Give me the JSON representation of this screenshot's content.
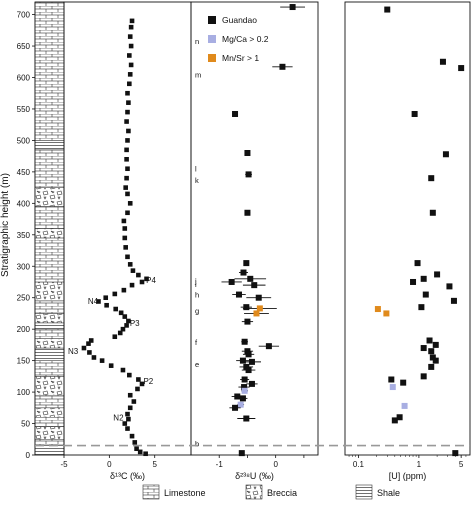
{
  "chart_data": {
    "type": "scatter",
    "ylabel": "Stratigraphic height (m)",
    "ylim": [
      0,
      720
    ],
    "yticks": [
      0,
      50,
      100,
      150,
      200,
      250,
      300,
      350,
      400,
      450,
      500,
      550,
      600,
      650,
      700
    ],
    "boundary_height": 15,
    "lithology_legend": [
      "Limestone",
      "Breccia",
      "Shale"
    ],
    "lithology_column": [
      {
        "from": 0,
        "to": 15,
        "rock": "shale"
      },
      {
        "from": 15,
        "to": 25,
        "rock": "limestone"
      },
      {
        "from": 25,
        "to": 45,
        "rock": "breccia"
      },
      {
        "from": 45,
        "to": 60,
        "rock": "limestone"
      },
      {
        "from": 60,
        "to": 75,
        "rock": "breccia"
      },
      {
        "from": 75,
        "to": 95,
        "rock": "limestone"
      },
      {
        "from": 95,
        "to": 125,
        "rock": "breccia"
      },
      {
        "from": 125,
        "to": 150,
        "rock": "limestone"
      },
      {
        "from": 150,
        "to": 170,
        "rock": "shale"
      },
      {
        "from": 170,
        "to": 185,
        "rock": "breccia"
      },
      {
        "from": 185,
        "to": 200,
        "rock": "limestone"
      },
      {
        "from": 200,
        "to": 210,
        "rock": "shale"
      },
      {
        "from": 210,
        "to": 225,
        "rock": "breccia"
      },
      {
        "from": 225,
        "to": 245,
        "rock": "limestone"
      },
      {
        "from": 245,
        "to": 275,
        "rock": "breccia"
      },
      {
        "from": 275,
        "to": 345,
        "rock": "limestone"
      },
      {
        "from": 345,
        "to": 360,
        "rock": "breccia"
      },
      {
        "from": 360,
        "to": 395,
        "rock": "limestone"
      },
      {
        "from": 395,
        "to": 425,
        "rock": "breccia"
      },
      {
        "from": 425,
        "to": 485,
        "rock": "limestone"
      },
      {
        "from": 485,
        "to": 500,
        "rock": "shale"
      },
      {
        "from": 500,
        "to": 720,
        "rock": "limestone"
      }
    ],
    "panels": [
      {
        "xlabel": "δ¹³C (‰)",
        "xlim": [
          -5,
          9
        ],
        "xticks": [
          -5,
          0,
          5
        ],
        "curve": [
          [
            4.0,
            2
          ],
          [
            3.4,
            5
          ],
          [
            3.0,
            10
          ],
          [
            2.8,
            20
          ],
          [
            2.5,
            30
          ],
          [
            2.0,
            42
          ],
          [
            1.7,
            50
          ],
          [
            2.1,
            57
          ],
          [
            2.0,
            65
          ],
          [
            2.3,
            75
          ],
          [
            2.7,
            85
          ],
          [
            2.3,
            95
          ],
          [
            3.1,
            105
          ],
          [
            3.6,
            113
          ],
          [
            3.2,
            120
          ],
          [
            2.2,
            127
          ],
          [
            1.5,
            135
          ],
          [
            0.2,
            142
          ],
          [
            -0.8,
            150
          ],
          [
            -1.7,
            155
          ],
          [
            -2.2,
            163
          ],
          [
            -2.8,
            170
          ],
          [
            -2.3,
            177
          ],
          [
            -2.0,
            182
          ],
          [
            0.6,
            188
          ],
          [
            1.2,
            194
          ],
          [
            1.5,
            200
          ],
          [
            1.9,
            206
          ],
          [
            2.1,
            213
          ],
          [
            1.7,
            220
          ],
          [
            1.3,
            226
          ],
          [
            0.7,
            232
          ],
          [
            -0.3,
            238
          ],
          [
            -1.2,
            244
          ],
          [
            -0.4,
            250
          ],
          [
            0.6,
            256
          ],
          [
            1.6,
            262
          ],
          [
            2.5,
            270
          ],
          [
            3.6,
            275
          ],
          [
            4.1,
            280
          ],
          [
            3.2,
            286
          ],
          [
            2.6,
            293
          ],
          [
            2.3,
            303
          ],
          [
            2.0,
            315
          ],
          [
            1.8,
            330
          ],
          [
            1.7,
            345
          ],
          [
            1.7,
            360
          ],
          [
            1.6,
            372
          ],
          [
            2.0,
            385
          ],
          [
            2.3,
            400
          ],
          [
            2.0,
            415
          ],
          [
            1.8,
            425
          ],
          [
            1.9,
            440
          ],
          [
            2.0,
            455
          ],
          [
            1.9,
            470
          ],
          [
            1.9,
            485
          ],
          [
            2.0,
            500
          ],
          [
            2.1,
            515
          ],
          [
            1.9,
            530
          ],
          [
            2.0,
            545
          ],
          [
            2.1,
            560
          ],
          [
            2.0,
            575
          ],
          [
            2.2,
            590
          ],
          [
            2.3,
            605
          ],
          [
            2.4,
            620
          ],
          [
            2.2,
            635
          ],
          [
            2.4,
            650
          ],
          [
            2.3,
            665
          ],
          [
            2.4,
            680
          ],
          [
            2.5,
            690
          ]
        ],
        "annotations": [
          {
            "text": "P4",
            "x": 4.6,
            "y": 278
          },
          {
            "text": "N4",
            "x": -1.8,
            "y": 245
          },
          {
            "text": "P3",
            "x": 2.8,
            "y": 210
          },
          {
            "text": "N3",
            "x": -4.0,
            "y": 165
          },
          {
            "text": "P2",
            "x": 4.3,
            "y": 118
          },
          {
            "text": "N2",
            "x": 1.0,
            "y": 60
          }
        ],
        "zone_letters": [
          {
            "text": "n",
            "y": 658
          },
          {
            "text": "m",
            "y": 605
          },
          {
            "text": "l",
            "y": 455
          },
          {
            "text": "k",
            "y": 437
          },
          {
            "text": "j",
            "y": 277
          },
          {
            "text": "i",
            "y": 272
          },
          {
            "text": "h",
            "y": 255
          },
          {
            "text": "g",
            "y": 230
          },
          {
            "text": "f",
            "y": 180
          },
          {
            "text": "e",
            "y": 145
          },
          {
            "text": "b",
            "y": 18
          }
        ]
      },
      {
        "xlabel": "δ²³⁸U (‰)",
        "xlim": [
          -1.5,
          0.75
        ],
        "xticks": [
          -1,
          -0.5,
          0,
          0.5
        ],
        "xticklabels": [
          "-1",
          "",
          "0",
          ""
        ],
        "legend": [
          "Guandao",
          "Mg/Ca > 0.2",
          "Mn/Sr > 1"
        ],
        "colors": {
          "guandao": "#111111",
          "mgca": "#a8aee2",
          "mnsr": "#e08a1c"
        },
        "points": [
          {
            "x": 0.3,
            "y": 712,
            "xerr": 0.22,
            "kind": "guandao"
          },
          {
            "x": 0.12,
            "y": 617,
            "xerr": 0.18,
            "kind": "guandao"
          },
          {
            "x": -0.72,
            "y": 542,
            "xerr": 0.05,
            "kind": "guandao"
          },
          {
            "x": -0.5,
            "y": 480,
            "xerr": 0.03,
            "kind": "guandao"
          },
          {
            "x": -0.48,
            "y": 446,
            "xerr": 0.06,
            "kind": "guandao"
          },
          {
            "x": -0.5,
            "y": 385,
            "xerr": 0.05,
            "kind": "guandao"
          },
          {
            "x": -0.52,
            "y": 305,
            "xerr": 0.05,
            "kind": "guandao"
          },
          {
            "x": -0.57,
            "y": 290,
            "xerr": 0.08,
            "kind": "guandao"
          },
          {
            "x": -0.45,
            "y": 280,
            "xerr": 0.28,
            "kind": "guandao"
          },
          {
            "x": -0.78,
            "y": 275,
            "xerr": 0.18,
            "kind": "guandao"
          },
          {
            "x": -0.38,
            "y": 270,
            "xerr": 0.2,
            "kind": "guandao"
          },
          {
            "x": -0.65,
            "y": 255,
            "xerr": 0.12,
            "kind": "guandao"
          },
          {
            "x": -0.3,
            "y": 250,
            "xerr": 0.22,
            "kind": "guandao"
          },
          {
            "x": -0.52,
            "y": 235,
            "xerr": 0.1,
            "kind": "guandao"
          },
          {
            "x": -0.28,
            "y": 233,
            "xerr": 0.3,
            "kind": "mnsr"
          },
          {
            "x": -0.34,
            "y": 225,
            "xerr": 0.22,
            "kind": "mnsr"
          },
          {
            "x": -0.5,
            "y": 212,
            "xerr": 0.1,
            "kind": "guandao"
          },
          {
            "x": -0.55,
            "y": 180,
            "xerr": 0.06,
            "kind": "guandao"
          },
          {
            "x": -0.12,
            "y": 173,
            "xerr": 0.18,
            "kind": "guandao"
          },
          {
            "x": -0.5,
            "y": 165,
            "xerr": 0.1,
            "kind": "guandao"
          },
          {
            "x": -0.48,
            "y": 160,
            "xerr": 0.1,
            "kind": "guandao"
          },
          {
            "x": -0.58,
            "y": 150,
            "xerr": 0.12,
            "kind": "guandao"
          },
          {
            "x": -0.42,
            "y": 148,
            "xerr": 0.16,
            "kind": "guandao"
          },
          {
            "x": -0.52,
            "y": 140,
            "xerr": 0.12,
            "kind": "guandao"
          },
          {
            "x": -0.48,
            "y": 135,
            "xerr": 0.12,
            "kind": "guandao"
          },
          {
            "x": -0.55,
            "y": 120,
            "xerr": 0.08,
            "kind": "guandao"
          },
          {
            "x": -0.42,
            "y": 113,
            "xerr": 0.1,
            "kind": "guandao"
          },
          {
            "x": -0.56,
            "y": 108,
            "xerr": 0.1,
            "kind": "guandao"
          },
          {
            "x": -0.55,
            "y": 102,
            "xerr": 0.06,
            "kind": "mgca"
          },
          {
            "x": -0.68,
            "y": 93,
            "xerr": 0.1,
            "kind": "guandao"
          },
          {
            "x": -0.58,
            "y": 90,
            "xerr": 0.08,
            "kind": "guandao"
          },
          {
            "x": -0.62,
            "y": 80,
            "xerr": 0.06,
            "kind": "mgca"
          },
          {
            "x": -0.72,
            "y": 75,
            "xerr": 0.1,
            "kind": "guandao"
          },
          {
            "x": -0.52,
            "y": 58,
            "xerr": 0.16,
            "kind": "guandao"
          },
          {
            "x": -0.6,
            "y": 3,
            "xerr": 0.03,
            "kind": "guandao"
          }
        ]
      },
      {
        "xlabel": "[U] (ppm)",
        "scale": "log",
        "xlim": [
          0.06,
          7
        ],
        "xticks": [
          0.1,
          1,
          5
        ],
        "xticklabels": [
          "0.1",
          "1",
          "5"
        ],
        "points": [
          {
            "x": 0.3,
            "y": 708,
            "kind": "guandao"
          },
          {
            "x": 5.0,
            "y": 615,
            "kind": "guandao"
          },
          {
            "x": 2.5,
            "y": 625,
            "kind": "guandao"
          },
          {
            "x": 0.85,
            "y": 542,
            "kind": "guandao"
          },
          {
            "x": 2.8,
            "y": 478,
            "kind": "guandao"
          },
          {
            "x": 1.6,
            "y": 440,
            "kind": "guandao"
          },
          {
            "x": 1.7,
            "y": 385,
            "kind": "guandao"
          },
          {
            "x": 0.95,
            "y": 305,
            "kind": "guandao"
          },
          {
            "x": 2.0,
            "y": 287,
            "kind": "guandao"
          },
          {
            "x": 1.2,
            "y": 280,
            "kind": "guandao"
          },
          {
            "x": 0.8,
            "y": 275,
            "kind": "guandao"
          },
          {
            "x": 3.2,
            "y": 268,
            "kind": "guandao"
          },
          {
            "x": 1.3,
            "y": 255,
            "kind": "guandao"
          },
          {
            "x": 3.8,
            "y": 245,
            "kind": "guandao"
          },
          {
            "x": 1.1,
            "y": 235,
            "kind": "guandao"
          },
          {
            "x": 0.21,
            "y": 232,
            "kind": "mnsr"
          },
          {
            "x": 0.29,
            "y": 225,
            "kind": "mnsr"
          },
          {
            "x": 1.5,
            "y": 182,
            "kind": "guandao"
          },
          {
            "x": 1.9,
            "y": 175,
            "kind": "guandao"
          },
          {
            "x": 1.2,
            "y": 170,
            "kind": "guandao"
          },
          {
            "x": 1.6,
            "y": 165,
            "kind": "guandao"
          },
          {
            "x": 1.7,
            "y": 155,
            "kind": "guandao"
          },
          {
            "x": 1.9,
            "y": 150,
            "kind": "guandao"
          },
          {
            "x": 1.6,
            "y": 140,
            "kind": "guandao"
          },
          {
            "x": 1.2,
            "y": 125,
            "kind": "guandao"
          },
          {
            "x": 0.35,
            "y": 120,
            "kind": "guandao"
          },
          {
            "x": 0.55,
            "y": 115,
            "kind": "guandao"
          },
          {
            "x": 0.37,
            "y": 108,
            "kind": "mgca"
          },
          {
            "x": 0.58,
            "y": 78,
            "kind": "mgca"
          },
          {
            "x": 0.48,
            "y": 60,
            "kind": "guandao"
          },
          {
            "x": 0.4,
            "y": 55,
            "kind": "guandao"
          },
          {
            "x": 4.0,
            "y": 3,
            "kind": "guandao"
          }
        ]
      }
    ]
  }
}
